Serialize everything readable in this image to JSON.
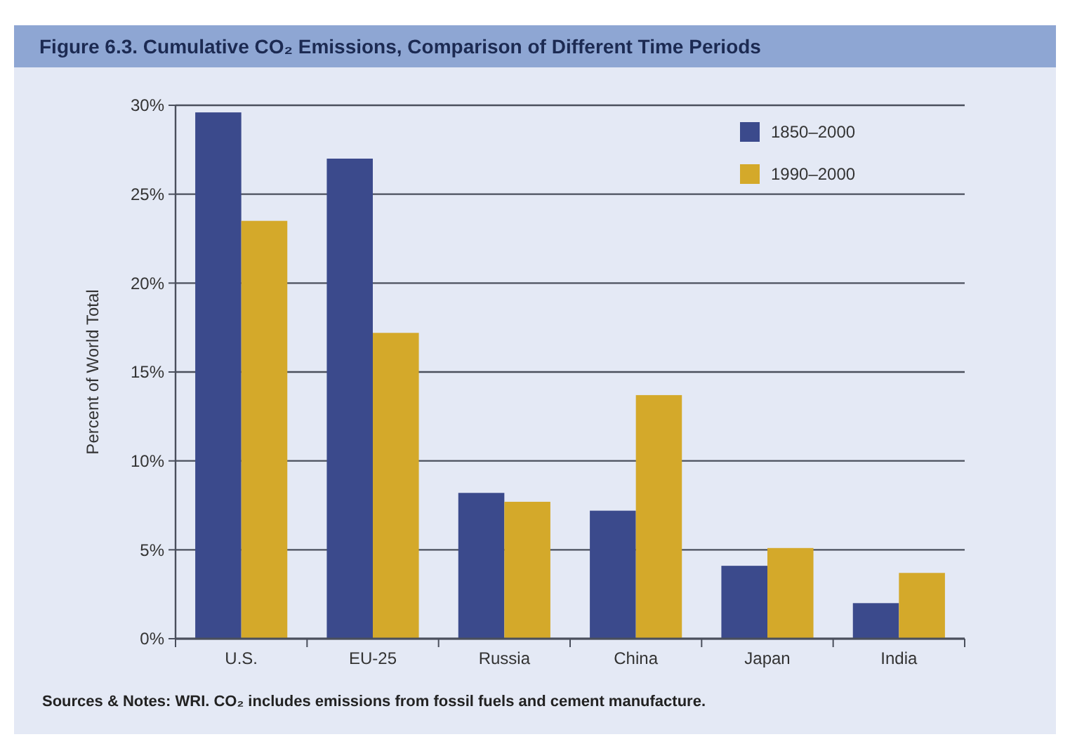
{
  "chart_data": {
    "type": "bar",
    "title": "Figure 6.3. Cumulative CO₂ Emissions, Comparison of Different Time Periods",
    "ylabel": "Percent of World Total",
    "categories": [
      "U.S.",
      "EU-25",
      "Russia",
      "China",
      "Japan",
      "India"
    ],
    "series": [
      {
        "name": "1850–2000",
        "color": "#3b4a8c",
        "values": [
          29.6,
          27.0,
          8.2,
          7.2,
          4.1,
          2.0
        ]
      },
      {
        "name": "1990–2000",
        "color": "#d4a92a",
        "values": [
          23.5,
          17.2,
          7.7,
          13.7,
          5.1,
          3.7
        ]
      }
    ],
    "ylim": [
      0,
      30
    ],
    "yticks": [
      {
        "value": 0,
        "label": "0%"
      },
      {
        "value": 5,
        "label": "5%"
      },
      {
        "value": 10,
        "label": "10%"
      },
      {
        "value": 15,
        "label": "15%"
      },
      {
        "value": 20,
        "label": "20%"
      },
      {
        "value": 25,
        "label": "25%"
      },
      {
        "value": 30,
        "label": "30%"
      }
    ],
    "grid": "y",
    "legend": "top right",
    "annotations": [
      "Sources & Notes: WRI. CO₂ includes emissions from fossil fuels and cement manufacture."
    ]
  }
}
